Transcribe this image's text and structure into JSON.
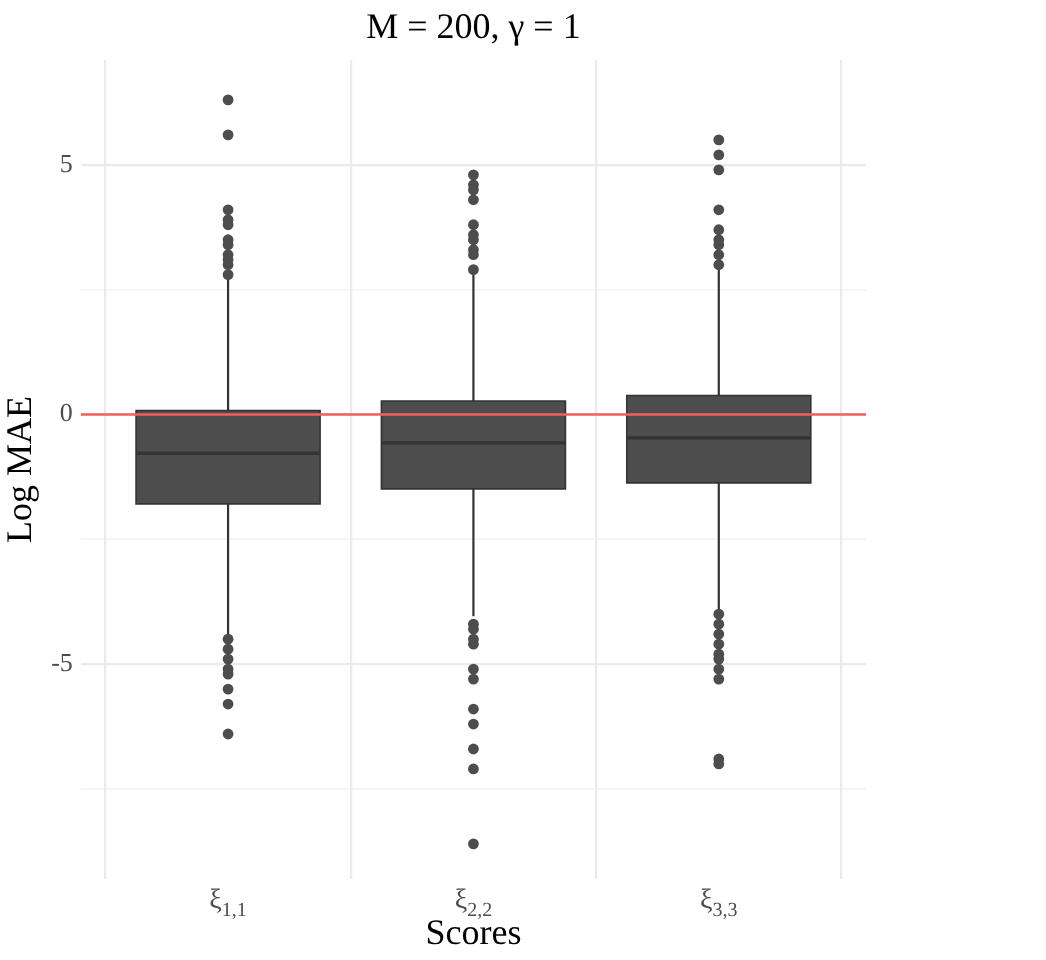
{
  "chart_data": {
    "type": "box",
    "title": "M = 200, γ = 1",
    "xlabel": "Scores",
    "ylabel": "Log MAE",
    "categories": [
      "ξ$_{1,1}$",
      "ξ$_{2,2}$",
      "ξ$_{3,3}$"
    ],
    "color": "#4d4d4d",
    "boxes": [
      {
        "low": -4.42,
        "q1": -1.79,
        "median": -0.78,
        "q3": 0.08,
        "high": 2.81,
        "outliers": [
          6.3,
          5.6,
          4.1,
          3.9,
          3.8,
          3.5,
          3.4,
          3.2,
          3.1,
          3.0,
          2.8,
          -4.5,
          -4.7,
          -4.9,
          -5.1,
          -5.2,
          -5.5,
          -5.8,
          -6.4
        ]
      },
      {
        "low": -4.04,
        "q1": -1.49,
        "median": -0.57,
        "q3": 0.27,
        "high": 2.81,
        "outliers": [
          4.8,
          4.6,
          4.5,
          4.3,
          3.8,
          3.6,
          3.5,
          3.3,
          3.2,
          2.9,
          -4.2,
          -4.3,
          -4.5,
          -4.6,
          -5.1,
          -5.3,
          -5.9,
          -6.2,
          -6.7,
          -7.1,
          -8.6
        ]
      },
      {
        "low": -3.95,
        "q1": -1.37,
        "median": -0.47,
        "q3": 0.38,
        "high": 2.92,
        "outliers": [
          5.5,
          5.2,
          4.9,
          4.1,
          3.7,
          3.5,
          3.4,
          3.2,
          3.0,
          -4.0,
          -4.2,
          -4.4,
          -4.6,
          -4.8,
          -4.9,
          -5.1,
          -5.3,
          -6.9,
          -7.0
        ]
      }
    ],
    "ylim": [
      -9.3,
      7.1
    ],
    "yticks": [
      {
        "value": -7.5,
        "label": null
      },
      -5,
      {
        "value": -2.5,
        "label": null
      },
      0,
      {
        "value": 2.5,
        "label": null
      },
      5
    ],
    "grid": true,
    "ref_lines": [
      {
        "axis": "y",
        "value": 0,
        "color": "#f06060"
      }
    ]
  }
}
